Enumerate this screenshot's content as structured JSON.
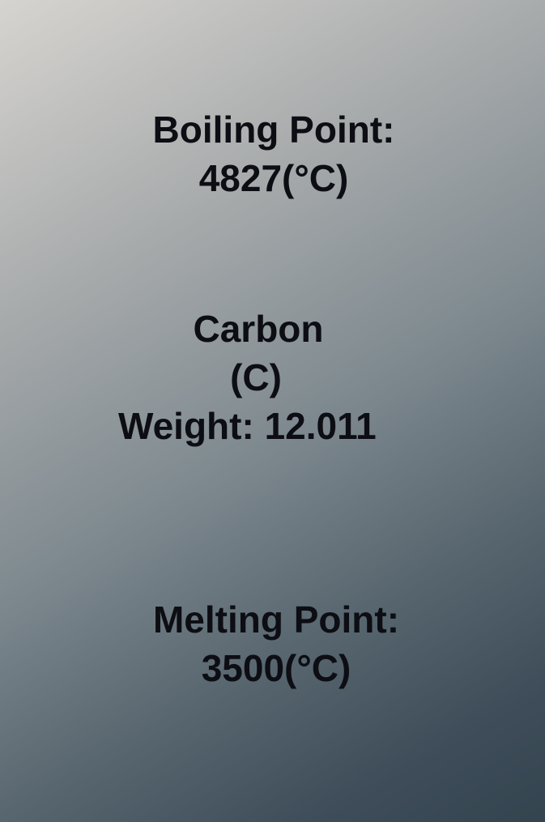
{
  "boiling": {
    "label": "Boiling Point:",
    "value": "4827(°C)"
  },
  "element": {
    "name": "Carbon",
    "symbol": "(C)",
    "weight": "Weight: 12.011"
  },
  "melting": {
    "label": "Melting Point:",
    "value": "3500(°C)"
  },
  "colors": {
    "text": "#0d0d14",
    "background_top": "#d6d4d0",
    "background_bottom": "#34444f"
  }
}
